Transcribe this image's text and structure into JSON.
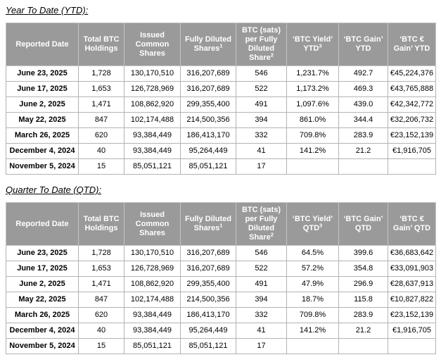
{
  "colors": {
    "header_background": "#9a9a9a",
    "header_text": "#ffffff",
    "body_text": "#000000",
    "cell_border": "#b3b3b3",
    "outer_border": "#7e7e7e",
    "page_background": "#ffffff"
  },
  "tables": [
    {
      "title": "Year To Date (YTD):",
      "columns": [
        {
          "label": "Reported Date",
          "sup": ""
        },
        {
          "label": "Total BTC Holdings",
          "sup": ""
        },
        {
          "label": "Issued Common Shares",
          "sup": ""
        },
        {
          "label": "Fully Diluted Shares",
          "sup": "1"
        },
        {
          "label": "BTC (sats) per Fully Diluted Share",
          "sup": "2"
        },
        {
          "label": "‘BTC Yield’ YTD",
          "sup": "3"
        },
        {
          "label": "‘BTC Gain’ YTD",
          "sup": ""
        },
        {
          "label": "‘BTC € Gain’ YTD",
          "sup": ""
        }
      ],
      "rows": [
        [
          "June 23, 2025",
          "1,728",
          "130,170,510",
          "316,207,689",
          "546",
          "1,231.7%",
          "492.7",
          "€45,224,376"
        ],
        [
          "June 17, 2025",
          "1,653",
          "126,728,969",
          "316,207,689",
          "522",
          "1,173.2%",
          "469.3",
          "€43,765,888"
        ],
        [
          "June 2, 2025",
          "1,471",
          "108,862,920",
          "299,355,400",
          "491",
          "1,097.6%",
          "439.0",
          "€42,342,772"
        ],
        [
          "May 22, 2025",
          "847",
          "102,174,488",
          "214,500,356",
          "394",
          "861.0%",
          "344.4",
          "€32,206,732"
        ],
        [
          "March 26, 2025",
          "620",
          "93,384,449",
          "186,413,170",
          "332",
          "709.8%",
          "283.9",
          "€23,152,139"
        ],
        [
          "December 4, 2024",
          "40",
          "93,384,449",
          "95,264,449",
          "41",
          "141.2%",
          "21.2",
          "€1,916,705"
        ],
        [
          "November 5, 2024",
          "15",
          "85,051,121",
          "85,051,121",
          "17",
          "",
          "",
          ""
        ]
      ]
    },
    {
      "title": "Quarter To Date (QTD):",
      "columns": [
        {
          "label": "Reported Date",
          "sup": ""
        },
        {
          "label": "Total BTC Holdings",
          "sup": ""
        },
        {
          "label": "Issued Common Shares",
          "sup": ""
        },
        {
          "label": "Fully Diluted Shares",
          "sup": "1"
        },
        {
          "label": "BTC (sats) per Fully Diluted Share",
          "sup": "2"
        },
        {
          "label": "‘BTC Yield’ QTD",
          "sup": "3"
        },
        {
          "label": "‘BTC Gain’ QTD",
          "sup": ""
        },
        {
          "label": "‘BTC € Gain’ QTD",
          "sup": ""
        }
      ],
      "rows": [
        [
          "June 23, 2025",
          "1,728",
          "130,170,510",
          "316,207,689",
          "546",
          "64.5%",
          "399.6",
          "€36,683,642"
        ],
        [
          "June 17, 2025",
          "1,653",
          "126,728,969",
          "316,207,689",
          "522",
          "57.2%",
          "354.8",
          "€33,091,903"
        ],
        [
          "June 2, 2025",
          "1,471",
          "108,862,920",
          "299,355,400",
          "491",
          "47.9%",
          "296.9",
          "€28,637,913"
        ],
        [
          "May 22, 2025",
          "847",
          "102,174,488",
          "214,500,356",
          "394",
          "18.7%",
          "115.8",
          "€10,827,822"
        ],
        [
          "March 26, 2025",
          "620",
          "93,384,449",
          "186,413,170",
          "332",
          "709.8%",
          "283.9",
          "€23,152,139"
        ],
        [
          "December 4, 2024",
          "40",
          "93,384,449",
          "95,264,449",
          "41",
          "141.2%",
          "21.2",
          "€1,916,705"
        ],
        [
          "November 5, 2024",
          "15",
          "85,051,121",
          "85,051,121",
          "17",
          "",
          "",
          ""
        ]
      ]
    }
  ]
}
